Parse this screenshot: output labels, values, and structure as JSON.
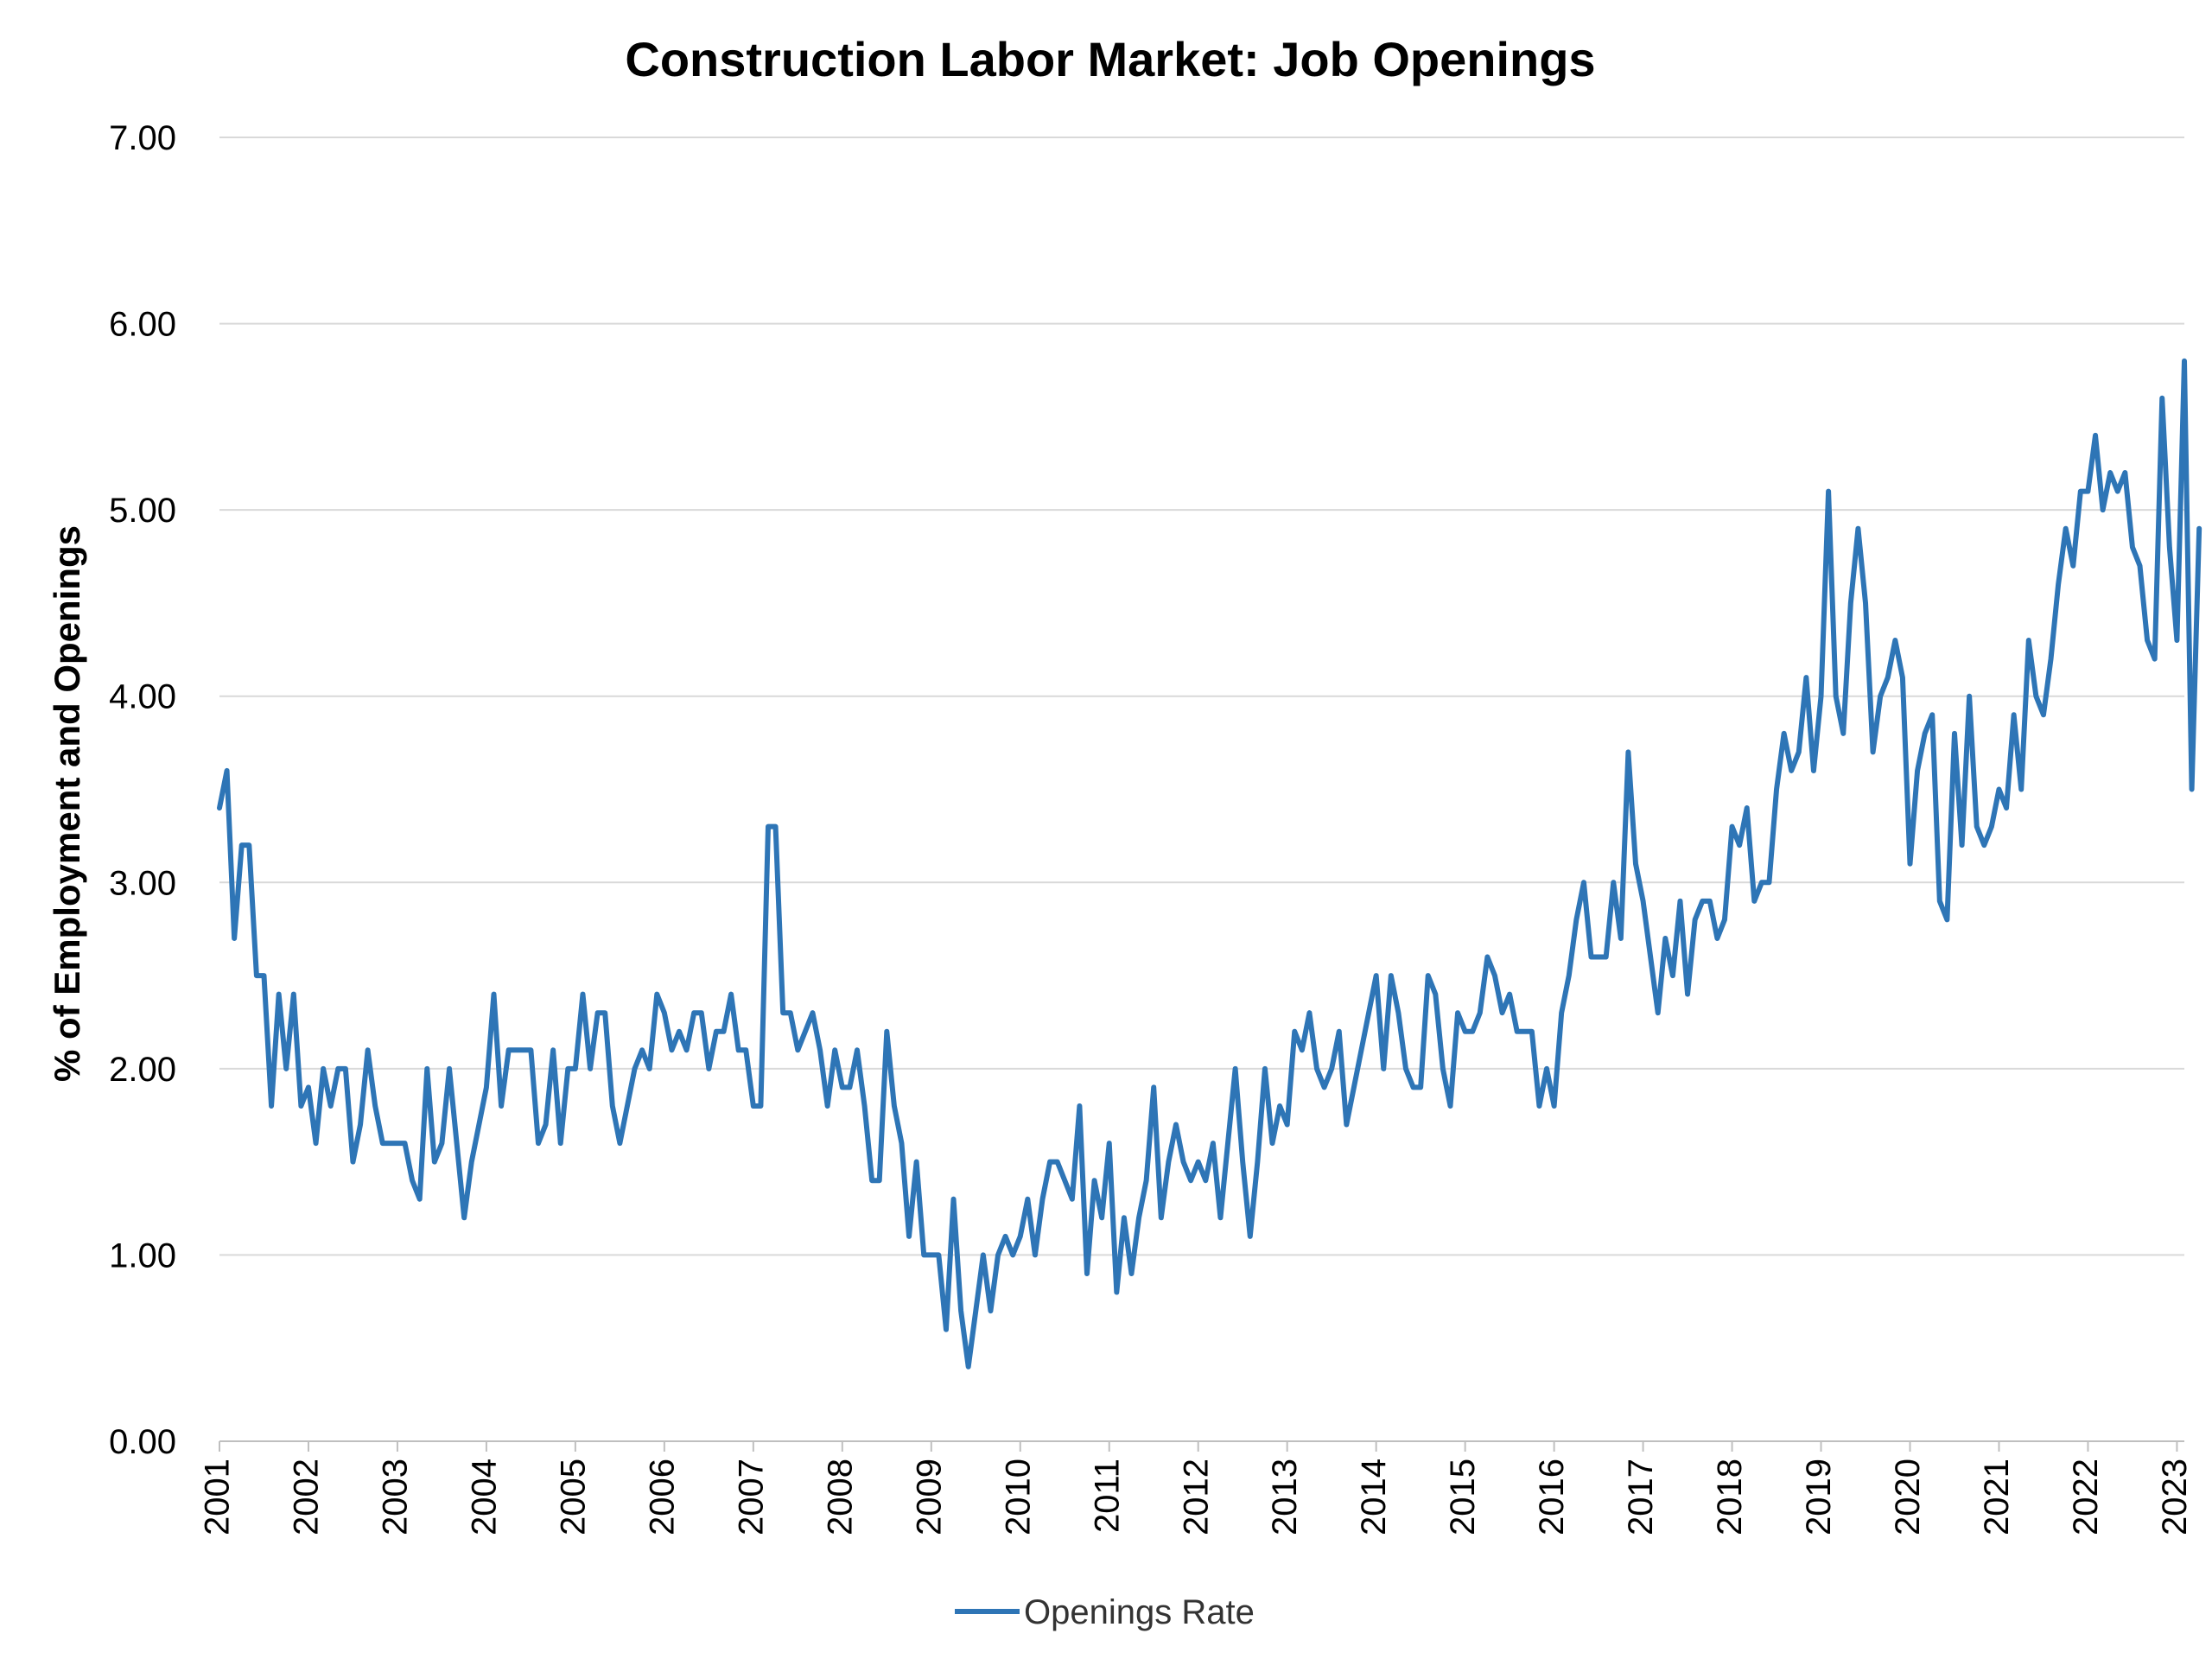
{
  "chart_data": {
    "type": "line",
    "title": "Construction Labor Market: Job Openings",
    "xlabel": "",
    "ylabel": "% of Employment and Openings",
    "ylim": [
      0,
      7
    ],
    "yticks": [
      "0.00",
      "1.00",
      "2.00",
      "3.00",
      "4.00",
      "5.00",
      "6.00",
      "7.00"
    ],
    "x_start": "2001-01",
    "xlim": [
      "2001-01",
      "2023-02"
    ],
    "xticks": [
      "2001",
      "2002",
      "2003",
      "2004",
      "2005",
      "2006",
      "2007",
      "2008",
      "2009",
      "2010",
      "2011",
      "2012",
      "2013",
      "2014",
      "2015",
      "2016",
      "2017",
      "2018",
      "2019",
      "2020",
      "2021",
      "2022",
      "2023"
    ],
    "grid": true,
    "legend": "bottom",
    "series": [
      {
        "name": "Openings Rate",
        "color": "#2e75b6",
        "frequency": "monthly",
        "values": [
          3.4,
          3.6,
          2.7,
          3.2,
          3.2,
          2.5,
          2.5,
          1.8,
          2.4,
          2.0,
          2.4,
          1.8,
          1.9,
          1.6,
          2.0,
          1.8,
          2.0,
          2.0,
          1.5,
          1.7,
          2.1,
          1.8,
          1.6,
          1.6,
          1.6,
          1.6,
          1.4,
          1.3,
          2.0,
          1.5,
          1.6,
          2.0,
          1.6,
          1.2,
          1.5,
          1.7,
          1.9,
          2.4,
          1.8,
          2.1,
          2.1,
          2.1,
          2.1,
          1.6,
          1.7,
          2.1,
          1.6,
          2.0,
          2.0,
          2.4,
          2.0,
          2.3,
          2.3,
          1.8,
          1.6,
          1.8,
          2.0,
          2.1,
          2.0,
          2.4,
          2.3,
          2.1,
          2.2,
          2.1,
          2.3,
          2.3,
          2.0,
          2.2,
          2.2,
          2.4,
          2.1,
          2.1,
          1.8,
          1.8,
          3.3,
          3.3,
          2.3,
          2.3,
          2.1,
          2.2,
          2.3,
          2.1,
          1.8,
          2.1,
          1.9,
          1.9,
          2.1,
          1.8,
          1.4,
          1.4,
          2.2,
          1.8,
          1.6,
          1.1,
          1.5,
          1.0,
          1.0,
          1.0,
          0.6,
          1.3,
          0.7,
          0.4,
          0.7,
          1.0,
          0.7,
          1.0,
          1.1,
          1.0,
          1.1,
          1.3,
          1.0,
          1.3,
          1.5,
          1.5,
          1.4,
          1.3,
          1.8,
          0.9,
          1.4,
          1.2,
          1.6,
          0.8,
          1.2,
          0.9,
          1.2,
          1.4,
          1.9,
          1.2,
          1.5,
          1.7,
          1.5,
          1.4,
          1.5,
          1.4,
          1.6,
          1.2,
          1.6,
          2.0,
          1.5,
          1.1,
          1.5,
          2.0,
          1.6,
          1.8,
          1.7,
          2.2,
          2.1,
          2.3,
          2.0,
          1.9,
          2.0,
          2.2,
          1.7,
          1.9,
          2.1,
          2.3,
          2.5,
          2.0,
          2.5,
          2.3,
          2.0,
          1.9,
          1.9,
          2.5,
          2.4,
          2.0,
          1.8,
          2.3,
          2.2,
          2.2,
          2.3,
          2.6,
          2.5,
          2.3,
          2.4,
          2.2,
          2.2,
          2.2,
          1.8,
          2.0,
          1.8,
          2.3,
          2.5,
          2.8,
          3.0,
          2.6,
          2.6,
          2.6,
          3.0,
          2.7,
          3.7,
          3.1,
          2.9,
          2.6,
          2.3,
          2.7,
          2.5,
          2.9,
          2.4,
          2.8,
          2.9,
          2.9,
          2.7,
          2.8,
          3.3,
          3.2,
          3.4,
          2.9,
          3.0,
          3.0,
          3.5,
          3.8,
          3.6,
          3.7,
          4.1,
          3.6,
          4.0,
          5.1,
          4.0,
          3.8,
          4.5,
          4.9,
          4.5,
          3.7,
          4.0,
          4.1,
          4.3,
          4.1,
          3.1,
          3.6,
          3.8,
          3.9,
          2.9,
          2.8,
          3.8,
          3.2,
          4.0,
          3.3,
          3.2,
          3.3,
          3.5,
          3.4,
          3.9,
          3.5,
          4.3,
          4.0,
          3.9,
          4.2,
          4.6,
          4.9,
          4.7,
          5.1,
          5.1,
          5.4,
          5.0,
          5.2,
          5.1,
          5.2,
          4.8,
          4.7,
          4.3,
          4.2,
          5.6,
          4.8,
          4.3,
          5.8,
          3.5,
          4.9
        ]
      }
    ]
  }
}
